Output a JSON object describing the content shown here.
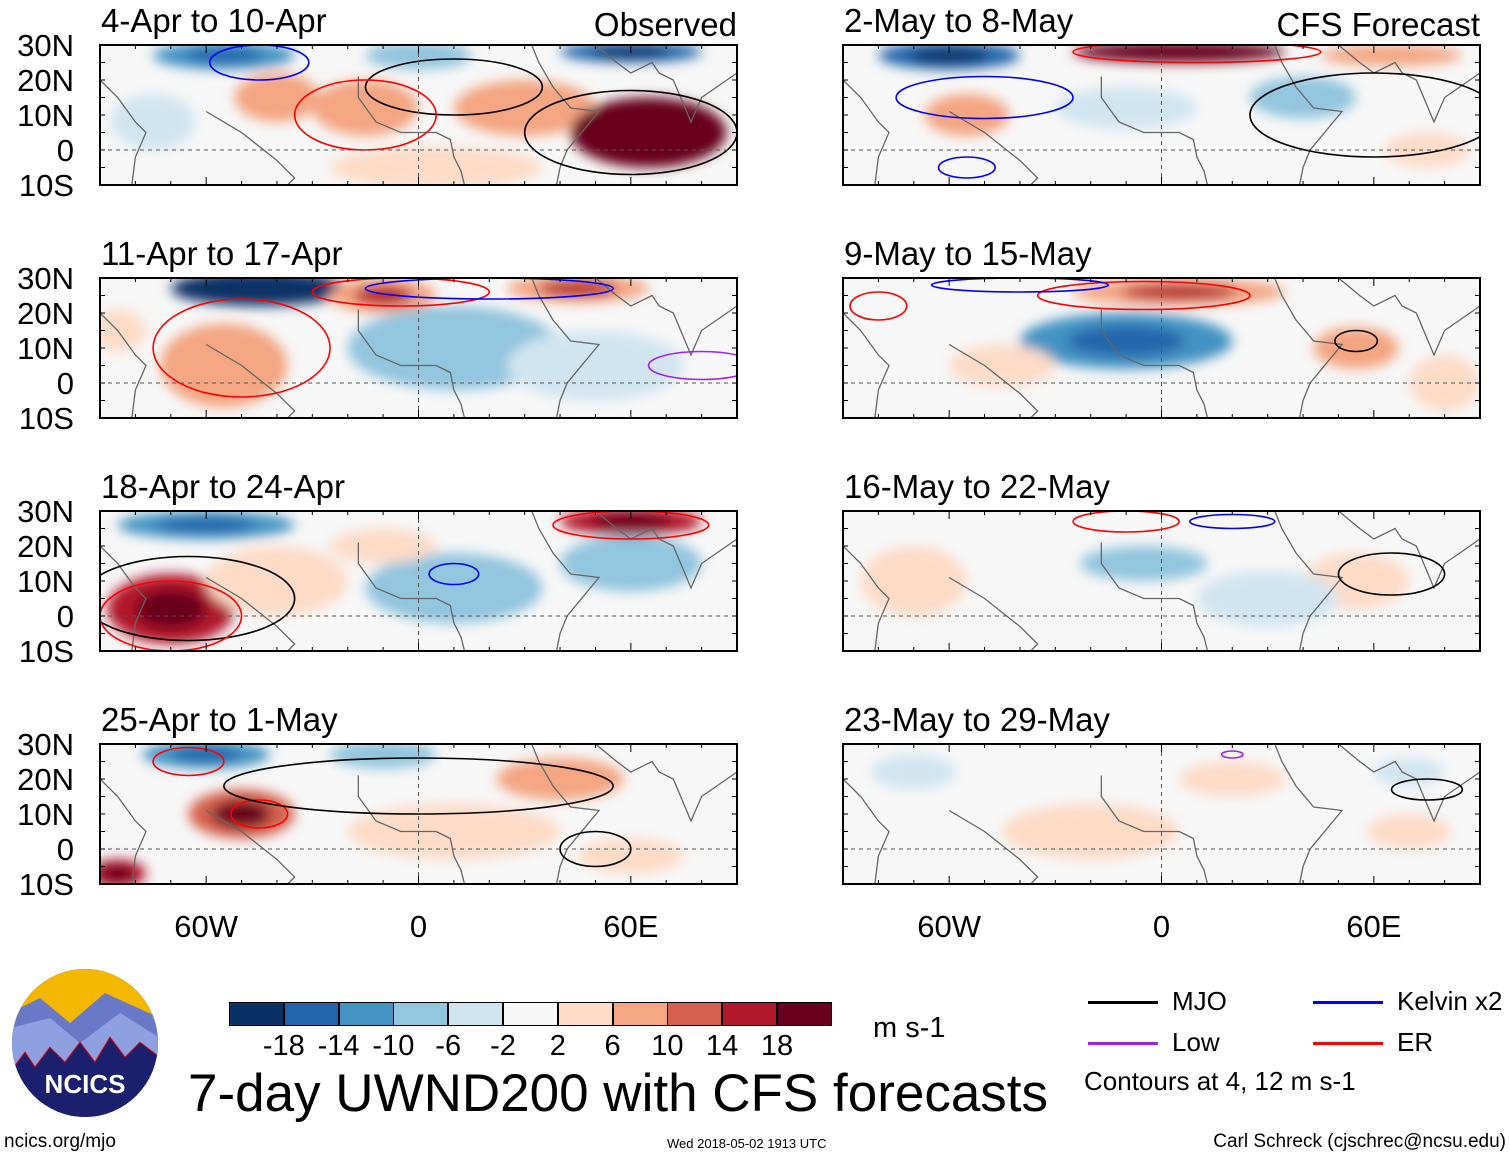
{
  "chart_data": {
    "type": "heatmap",
    "title": "7-day UWND200 with CFS forecasts",
    "units": "m s-1",
    "lon_range": [
      -90,
      90
    ],
    "lat_range": [
      -10,
      30
    ],
    "lat_ticks": [
      "30N",
      "20N",
      "10N",
      "0",
      "10S"
    ],
    "lon_ticks": [
      "60W",
      "0",
      "60E"
    ],
    "colorbar": {
      "levels": [
        "-18",
        "-14",
        "-10",
        "-6",
        "-2",
        "2",
        "6",
        "10",
        "14",
        "18"
      ],
      "colors": [
        "#0a3166",
        "#2166ac",
        "#4393c3",
        "#92c5de",
        "#d1e5f0",
        "#f7f7f7",
        "#fddbc7",
        "#f4a582",
        "#d6604d",
        "#b2182b",
        "#67001f"
      ]
    },
    "legend": [
      {
        "label": "MJO",
        "color": "#000000"
      },
      {
        "label": "Kelvin x2",
        "color": "#0000ff"
      },
      {
        "label": "Low",
        "color": "#a020f0"
      },
      {
        "label": "ER",
        "color": "#ff0000"
      }
    ],
    "contour_note": "Contours at 4, 12 m s-1",
    "column_labels": {
      "left": "Observed",
      "right": "CFS Forecast"
    },
    "panels": [
      {
        "title": "4-Apr to 10-Apr",
        "blobs": [
          [
            -55,
            27,
            -12,
            20,
            4
          ],
          [
            0,
            27,
            -8,
            15,
            4
          ],
          [
            60,
            28,
            -16,
            20,
            3
          ],
          [
            -40,
            15,
            8,
            12,
            7
          ],
          [
            -15,
            12,
            8,
            15,
            8
          ],
          [
            30,
            12,
            9,
            20,
            8
          ],
          [
            65,
            5,
            20,
            22,
            10
          ],
          [
            -75,
            8,
            -5,
            12,
            8
          ],
          [
            5,
            -5,
            3,
            30,
            6
          ]
        ],
        "contours": [
          [
            -45,
            25,
            "#0000ff",
            14,
            5
          ],
          [
            60,
            5,
            "#000000",
            30,
            12
          ],
          [
            10,
            18,
            "#000000",
            25,
            8
          ],
          [
            -15,
            10,
            "#ff0000",
            20,
            10
          ]
        ]
      },
      {
        "title": "11-Apr to 17-Apr",
        "blobs": [
          [
            -45,
            27,
            -20,
            25,
            5
          ],
          [
            -10,
            25,
            10,
            15,
            5
          ],
          [
            45,
            27,
            10,
            20,
            4
          ],
          [
            -55,
            5,
            9,
            18,
            12
          ],
          [
            10,
            10,
            -8,
            30,
            12
          ],
          [
            50,
            5,
            -5,
            25,
            10
          ],
          [
            -85,
            15,
            5,
            8,
            6
          ]
        ],
        "contours": [
          [
            -50,
            10,
            "#ff0000",
            25,
            14
          ],
          [
            -5,
            26,
            "#ff0000",
            25,
            4
          ],
          [
            20,
            27,
            "#0000ff",
            35,
            3
          ],
          [
            80,
            5,
            "#a020f0",
            15,
            4
          ]
        ]
      },
      {
        "title": "18-Apr to 24-Apr",
        "blobs": [
          [
            -60,
            26,
            -10,
            25,
            4
          ],
          [
            60,
            27,
            15,
            20,
            4
          ],
          [
            -70,
            2,
            18,
            18,
            10
          ],
          [
            -40,
            10,
            6,
            20,
            10
          ],
          [
            10,
            8,
            -8,
            25,
            10
          ],
          [
            60,
            15,
            -7,
            20,
            8
          ],
          [
            -10,
            20,
            4,
            15,
            5
          ]
        ],
        "contours": [
          [
            -65,
            5,
            "#000000",
            30,
            12
          ],
          [
            -70,
            0,
            "#ff0000",
            20,
            10
          ],
          [
            10,
            12,
            "#0000ff",
            7,
            3
          ],
          [
            60,
            26,
            "#ff0000",
            22,
            4
          ]
        ]
      },
      {
        "title": "25-Apr to 1-May",
        "blobs": [
          [
            -60,
            27,
            -12,
            18,
            4
          ],
          [
            -10,
            27,
            -8,
            15,
            4
          ],
          [
            -50,
            10,
            14,
            15,
            7
          ],
          [
            40,
            20,
            8,
            18,
            6
          ],
          [
            -85,
            -7,
            18,
            8,
            4
          ],
          [
            10,
            5,
            3,
            30,
            8
          ],
          [
            60,
            -2,
            5,
            15,
            5
          ]
        ],
        "contours": [
          [
            -45,
            10,
            "#ff0000",
            8,
            4
          ],
          [
            0,
            18,
            "#000000",
            55,
            8
          ],
          [
            50,
            0,
            "#000000",
            10,
            5
          ],
          [
            -65,
            25,
            "#ff0000",
            10,
            4
          ]
        ]
      }
    ],
    "forecast_panels": [
      {
        "title": "2-May to 8-May",
        "blobs": [
          [
            -60,
            27,
            -14,
            20,
            4
          ],
          [
            5,
            28,
            22,
            30,
            3
          ],
          [
            65,
            27,
            8,
            20,
            3
          ],
          [
            -55,
            10,
            8,
            12,
            6
          ],
          [
            -10,
            12,
            -5,
            20,
            6
          ],
          [
            40,
            15,
            -8,
            15,
            6
          ],
          [
            75,
            0,
            4,
            12,
            5
          ]
        ],
        "contours": [
          [
            10,
            28,
            "#ff0000",
            35,
            3
          ],
          [
            -50,
            15,
            "#0000ff",
            25,
            6
          ],
          [
            -55,
            -5,
            "#0000ff",
            8,
            3
          ],
          [
            60,
            10,
            "#000000",
            35,
            12
          ]
        ]
      },
      {
        "title": "9-May to 15-May",
        "blobs": [
          [
            5,
            26,
            10,
            30,
            4
          ],
          [
            -10,
            12,
            -10,
            30,
            8
          ],
          [
            -45,
            5,
            4,
            15,
            6
          ],
          [
            55,
            10,
            8,
            12,
            6
          ],
          [
            80,
            0,
            5,
            10,
            8
          ]
        ],
        "contours": [
          [
            -80,
            22,
            "#ff0000",
            8,
            4
          ],
          [
            -5,
            25,
            "#ff0000",
            30,
            4
          ],
          [
            55,
            12,
            "#000000",
            6,
            3
          ],
          [
            -40,
            28,
            "#0000ff",
            25,
            2
          ]
        ]
      },
      {
        "title": "16-May to 22-May",
        "blobs": [
          [
            -5,
            15,
            -6,
            18,
            5
          ],
          [
            55,
            10,
            4,
            15,
            8
          ],
          [
            -70,
            10,
            4,
            15,
            10
          ],
          [
            30,
            5,
            -3,
            20,
            8
          ]
        ],
        "contours": [
          [
            65,
            12,
            "#000000",
            15,
            6
          ],
          [
            -10,
            27,
            "#ff0000",
            15,
            3
          ],
          [
            20,
            27,
            "#0000ff",
            12,
            2
          ]
        ]
      },
      {
        "title": "23-May to 29-May",
        "blobs": [
          [
            -70,
            22,
            -5,
            12,
            5
          ],
          [
            20,
            20,
            4,
            15,
            5
          ],
          [
            70,
            5,
            5,
            12,
            5
          ],
          [
            -20,
            5,
            3,
            25,
            8
          ],
          [
            70,
            22,
            -3,
            10,
            4
          ]
        ],
        "contours": [
          [
            75,
            17,
            "#000000",
            10,
            3
          ],
          [
            20,
            27,
            "#a020f0",
            3,
            1
          ]
        ]
      }
    ]
  },
  "logo": {
    "text": "NCICS"
  },
  "footer": {
    "url": "ncics.org/mjo",
    "timestamp": "Wed 2018-05-02 1913 UTC",
    "credit": "Carl Schreck (cjschrec@ncsu.edu)"
  }
}
